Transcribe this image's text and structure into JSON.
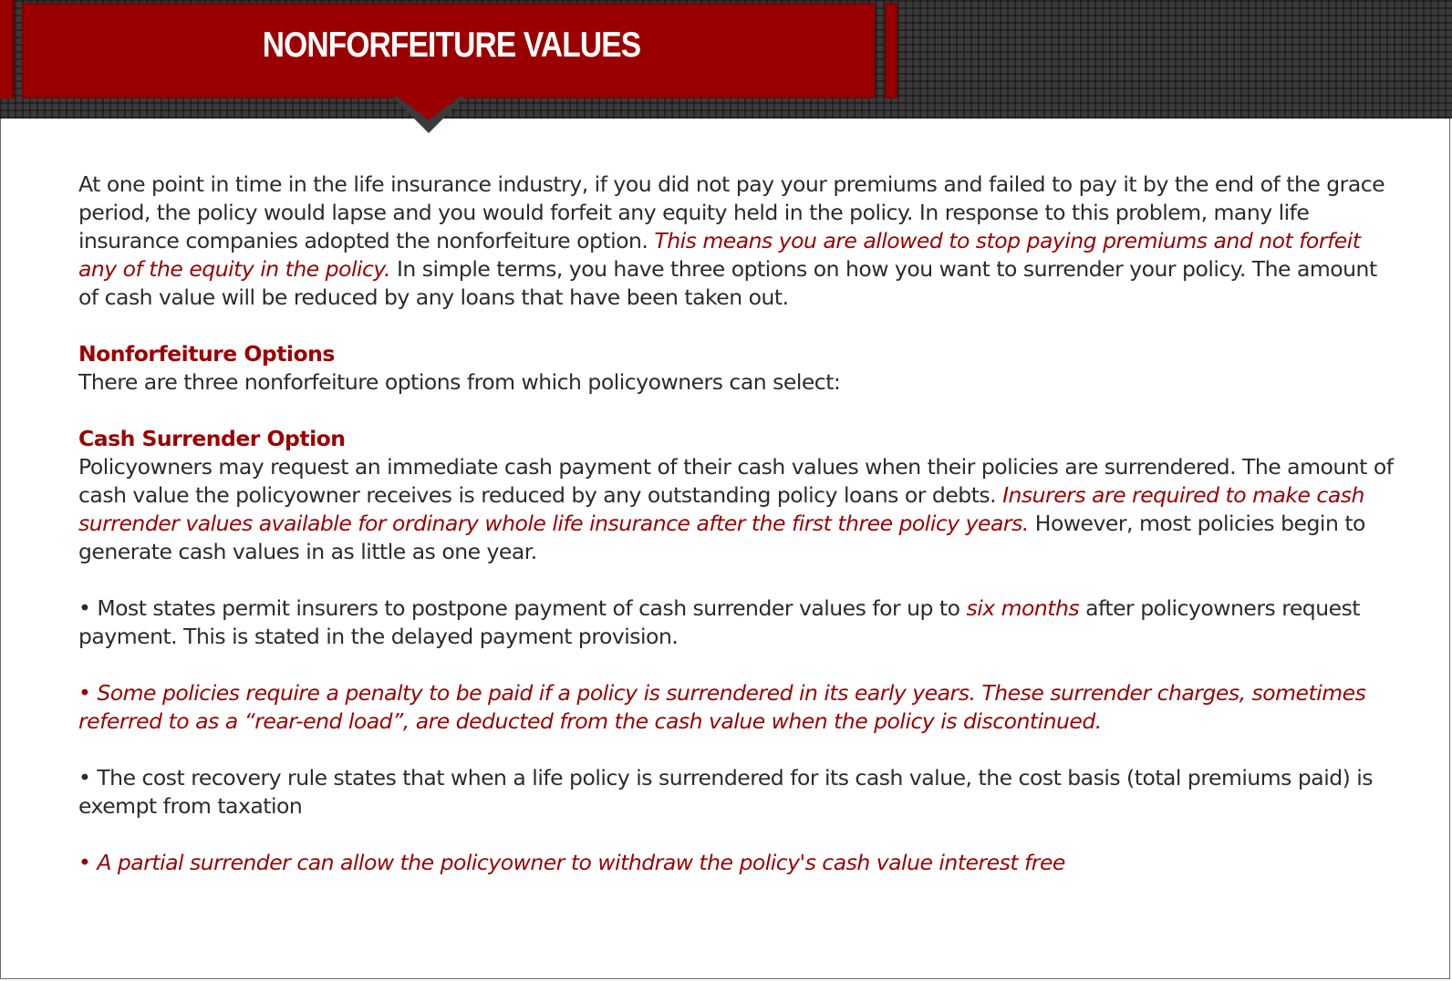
{
  "header": {
    "title": "NONFORFEITURE VALUES"
  },
  "intro": {
    "text_a": "At one point in time in the life insurance industry, if you did not pay your premiums and failed to pay it by the end of the grace period, the policy would lapse and you would forfeit any equity held in the policy. In response to this problem, many life insurance companies adopted the nonforfeiture option. ",
    "emphasis": "This means you are allowed to stop paying premiums and not forfeit any of the equity in the policy.",
    "text_b": " In simple terms, you have three options on how you want to surrender your policy. The amount of cash value will be reduced by any loans that have been taken out."
  },
  "options_section": {
    "heading": "Nonforfeiture Options",
    "text": "There are three nonforfeiture options from which policyowners can select:"
  },
  "cash_surrender": {
    "heading": "Cash Surrender Option",
    "text_a": "Policyowners may request an immediate cash payment of their cash values when their policies are surrendered. The amount of cash value the policyowner receives is reduced by any outstanding policy loans or debts. ",
    "emphasis": "Insurers are required to make cash surrender values available for ordinary whole life insurance after the first three policy years.",
    "text_b": " However, most policies begin to generate cash values in as little as one year."
  },
  "bullets": {
    "b1_a": "• Most states permit insurers to postpone payment of cash surrender values for up to ",
    "b1_emphasis": "six months",
    "b1_b": " after policyowners request payment. This is stated in the delayed payment provision.",
    "b2": "• Some policies require a penalty to be paid if a policy is surrendered in its early years. These surrender charges, sometimes referred to as a “rear-end load”, are deducted from the cash value when the policy is discontinued.",
    "b3": "• The cost recovery rule states that when a life policy is surrendered for its cash value, the cost basis (total premiums paid) is exempt from taxation",
    "b4": "• A partial surrender can allow the policyowner to withdraw the policy's cash value interest free"
  },
  "colors": {
    "accent": "#9b0000",
    "body_text": "#2b2b2b",
    "header_background": "#3a3a3a"
  }
}
